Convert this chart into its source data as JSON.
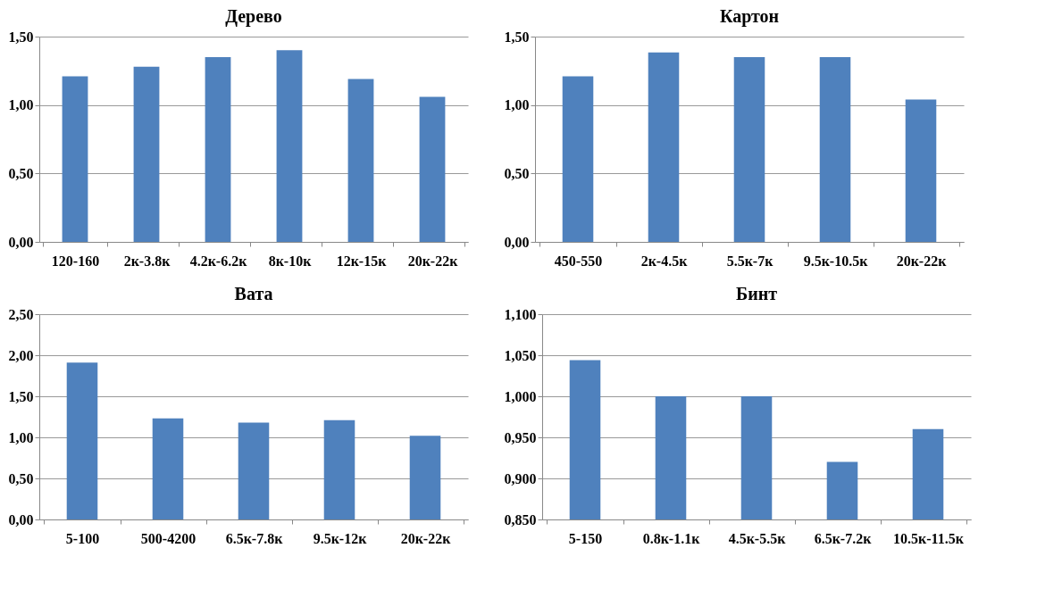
{
  "chart_data": [
    {
      "type": "bar",
      "title": "Дерево",
      "categories": [
        "120-160",
        "2к-3.8к",
        "4.2к-6.2к",
        "8к-10к",
        "12к-15к",
        "20к-22к"
      ],
      "values": [
        1.21,
        1.28,
        1.35,
        1.4,
        1.19,
        1.06
      ],
      "color": "#4f81bd",
      "ylim": [
        0,
        1.5
      ],
      "yticks": [
        {
          "value": 0,
          "label": "0,00"
        },
        {
          "value": 0.5,
          "label": "0,50"
        },
        {
          "value": 1,
          "label": "1,00"
        },
        {
          "value": 1.5,
          "label": "1,50"
        }
      ],
      "grid": "y"
    },
    {
      "type": "bar",
      "title": "Картон",
      "categories": [
        "450-550",
        "2к-4.5к",
        "5.5к-7к",
        "9.5к-10.5к",
        "20к-22к"
      ],
      "values": [
        1.21,
        1.385,
        1.35,
        1.35,
        1.04
      ],
      "color": "#4f81bd",
      "ylim": [
        0,
        1.5
      ],
      "yticks": [
        {
          "value": 0,
          "label": "0,00"
        },
        {
          "value": 0.5,
          "label": "0,50"
        },
        {
          "value": 1,
          "label": "1,00"
        },
        {
          "value": 1.5,
          "label": "1,50"
        }
      ],
      "grid": "y"
    },
    {
      "type": "bar",
      "title": "Вата",
      "categories": [
        "5-100",
        "500-4200",
        "6.5к-7.8к",
        "9.5к-12к",
        "20к-22к"
      ],
      "values": [
        1.91,
        1.23,
        1.18,
        1.21,
        1.02
      ],
      "color": "#4f81bd",
      "ylim": [
        0,
        2.5
      ],
      "yticks": [
        {
          "value": 0,
          "label": "0,00"
        },
        {
          "value": 0.5,
          "label": "0,50"
        },
        {
          "value": 1,
          "label": "1,00"
        },
        {
          "value": 1.5,
          "label": "1,50"
        },
        {
          "value": 2,
          "label": "2,00"
        },
        {
          "value": 2.5,
          "label": "2,50"
        }
      ],
      "grid": "y"
    },
    {
      "type": "bar",
      "title": "Бинт",
      "categories": [
        "5-150",
        "0.8к-1.1к",
        "4.5к-5.5к",
        "6.5к-7.2к",
        "10.5к-11.5к"
      ],
      "values": [
        1.044,
        1.0,
        1.0,
        0.92,
        0.96
      ],
      "color": "#4f81bd",
      "ylim": [
        0.85,
        1.1
      ],
      "yticks": [
        {
          "value": 0.85,
          "label": "0,850"
        },
        {
          "value": 0.9,
          "label": "0,900"
        },
        {
          "value": 0.95,
          "label": "0,950"
        },
        {
          "value": 1,
          "label": "1,000"
        },
        {
          "value": 1.05,
          "label": "1,050"
        },
        {
          "value": 1.1,
          "label": "1,100"
        }
      ],
      "grid": "y"
    }
  ]
}
